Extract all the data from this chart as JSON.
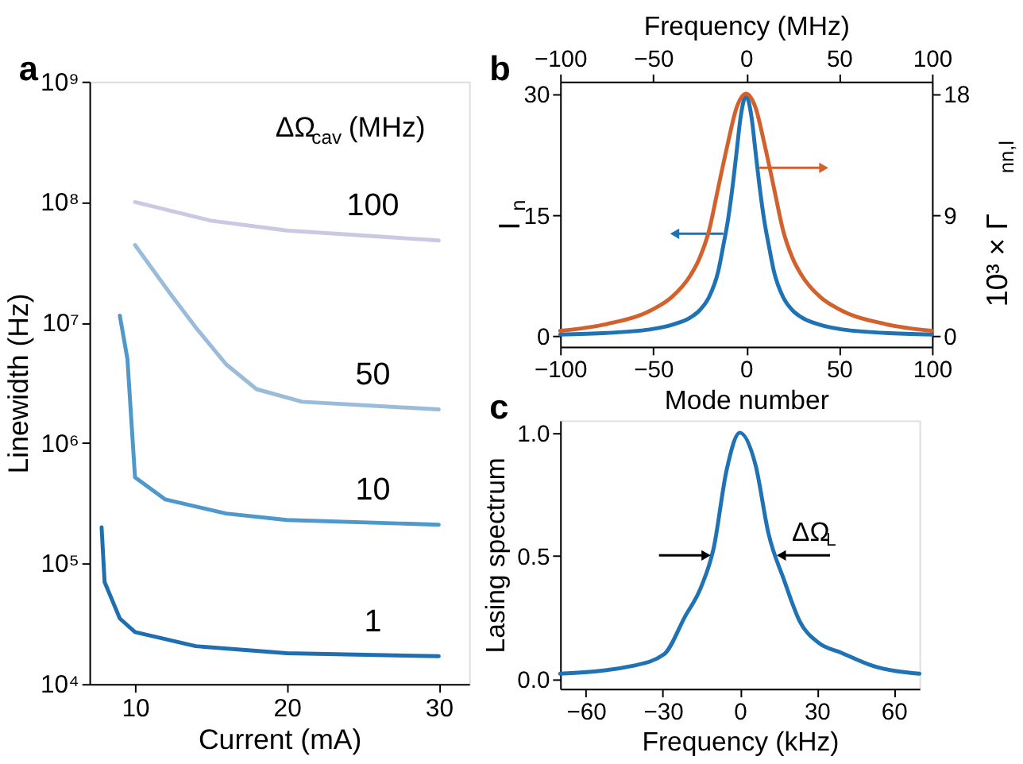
{
  "chart_data": [
    {
      "type": "line",
      "title": "a",
      "xlabel": "Current (mA)",
      "ylabel": "Linewidth (Hz)",
      "legend_title": "ΔΩ$_{cav}$ (MHz)",
      "log": "y",
      "grid": false,
      "xlim": [
        7,
        32
      ],
      "xticks": [
        10,
        20,
        30
      ],
      "ylim": [
        10000,
        1000000000
      ],
      "yticks": [
        {
          "value": 10000,
          "label": "10⁴"
        },
        {
          "value": 100000,
          "label": "10⁵"
        },
        {
          "value": 1000000,
          "label": "10⁶"
        },
        {
          "value": 10000000,
          "label": "10⁷"
        },
        {
          "value": 100000000,
          "label": "10⁸"
        },
        {
          "value": 1000000000,
          "label": "10⁹"
        }
      ],
      "series": [
        {
          "name": "100",
          "color": "#c9c9e3",
          "x": [
            10,
            15,
            20,
            30
          ],
          "values": [
            100000000,
            70000000,
            58000000,
            48000000
          ]
        },
        {
          "name": "50",
          "color": "#9bbbdb",
          "x": [
            10,
            12.3,
            14,
            16,
            18,
            21,
            30
          ],
          "values": [
            44000000,
            17500000,
            9100000,
            4500000,
            2800000,
            2200000,
            1900000
          ]
        },
        {
          "name": "10",
          "color": "#4f98cc",
          "x": [
            9,
            9.5,
            10,
            12,
            16,
            20,
            30
          ],
          "values": [
            11400000,
            5000000,
            520000,
            340000,
            260000,
            230000,
            210000
          ]
        },
        {
          "name": "1",
          "color": "#1f6fb0",
          "x": [
            7.8,
            8,
            9,
            10,
            14,
            20,
            30
          ],
          "values": [
            200000,
            70000,
            35000,
            27000,
            20600,
            18000,
            17000
          ]
        }
      ]
    },
    {
      "type": "line",
      "title": "b",
      "xlabel": "Mode number",
      "ylabel": "I$_{n}$",
      "x2label": "Frequency (MHz)",
      "y2label": "10³ × Γ$_{nn,l}$",
      "grid": false,
      "xlim": [
        -100,
        100
      ],
      "xticks": [
        -100,
        -50,
        0,
        50,
        100
      ],
      "x2lim": [
        -100,
        100
      ],
      "x2ticks": [
        -100,
        -50,
        0,
        50,
        100
      ],
      "ylim": [
        -1.3,
        31.5
      ],
      "yticks": [
        0,
        15,
        30
      ],
      "y2lim": [
        -0.78,
        18.9
      ],
      "y2ticks": [
        0,
        9,
        18
      ],
      "series": [
        {
          "color": "#1f72b3",
          "x": [
            -100,
            -75,
            -50,
            -40,
            -30,
            -25,
            -20,
            -15,
            -12,
            -10,
            -7,
            -5,
            -3,
            0,
            3,
            5,
            7,
            10,
            12,
            15,
            20,
            25,
            30,
            40,
            50,
            75,
            100
          ],
          "values": [
            0.2,
            0.4,
            0.9,
            1.4,
            2.3,
            3.2,
            4.8,
            8,
            11.5,
            14,
            19,
            23,
            27,
            29.7,
            27,
            23,
            19,
            14,
            11.5,
            8,
            4.8,
            3.2,
            2.3,
            1.4,
            0.9,
            0.4,
            0.2
          ]
        },
        {
          "color": "#d2622d",
          "axis": "y2",
          "x": [
            -100,
            -75,
            -50,
            -40,
            -30,
            -25,
            -20,
            -15,
            -10,
            -5,
            0,
            5,
            10,
            15,
            20,
            25,
            30,
            40,
            50,
            75,
            100
          ],
          "values": [
            0.4,
            0.9,
            2.0,
            2.9,
            4.5,
            5.8,
            7.8,
            11,
            14.2,
            17,
            18,
            17,
            14.2,
            11,
            7.8,
            5.8,
            4.5,
            2.9,
            2.0,
            0.9,
            0.4
          ]
        }
      ]
    },
    {
      "type": "line",
      "title": "c",
      "xlabel": "Frequency (kHz)",
      "ylabel": "Lasing spectrum",
      "grid": false,
      "xlim": [
        -70,
        70
      ],
      "xticks": [
        -60,
        -30,
        0,
        30,
        60
      ],
      "ylim": [
        -0.04,
        1.05
      ],
      "yticks": [
        {
          "value": 0,
          "label": "0.0"
        },
        {
          "value": 0.5,
          "label": "0.5"
        },
        {
          "value": 1,
          "label": "1.0"
        }
      ],
      "annotations": [
        "ΔΩ$_{L}$"
      ],
      "series": [
        {
          "color": "#1f72b3",
          "x": [
            -70,
            -41.7,
            -29.5,
            -21.3,
            -15.2,
            -10.2,
            -5.1,
            0,
            6.1,
            11.2,
            17.3,
            23.4,
            30.5,
            39.6,
            51.8,
            70
          ],
          "values": [
            0.021,
            0.053,
            0.1,
            0.254,
            0.37,
            0.53,
            0.85,
            1.0,
            0.87,
            0.59,
            0.4,
            0.233,
            0.148,
            0.106,
            0.053,
            0.021
          ]
        }
      ]
    }
  ]
}
